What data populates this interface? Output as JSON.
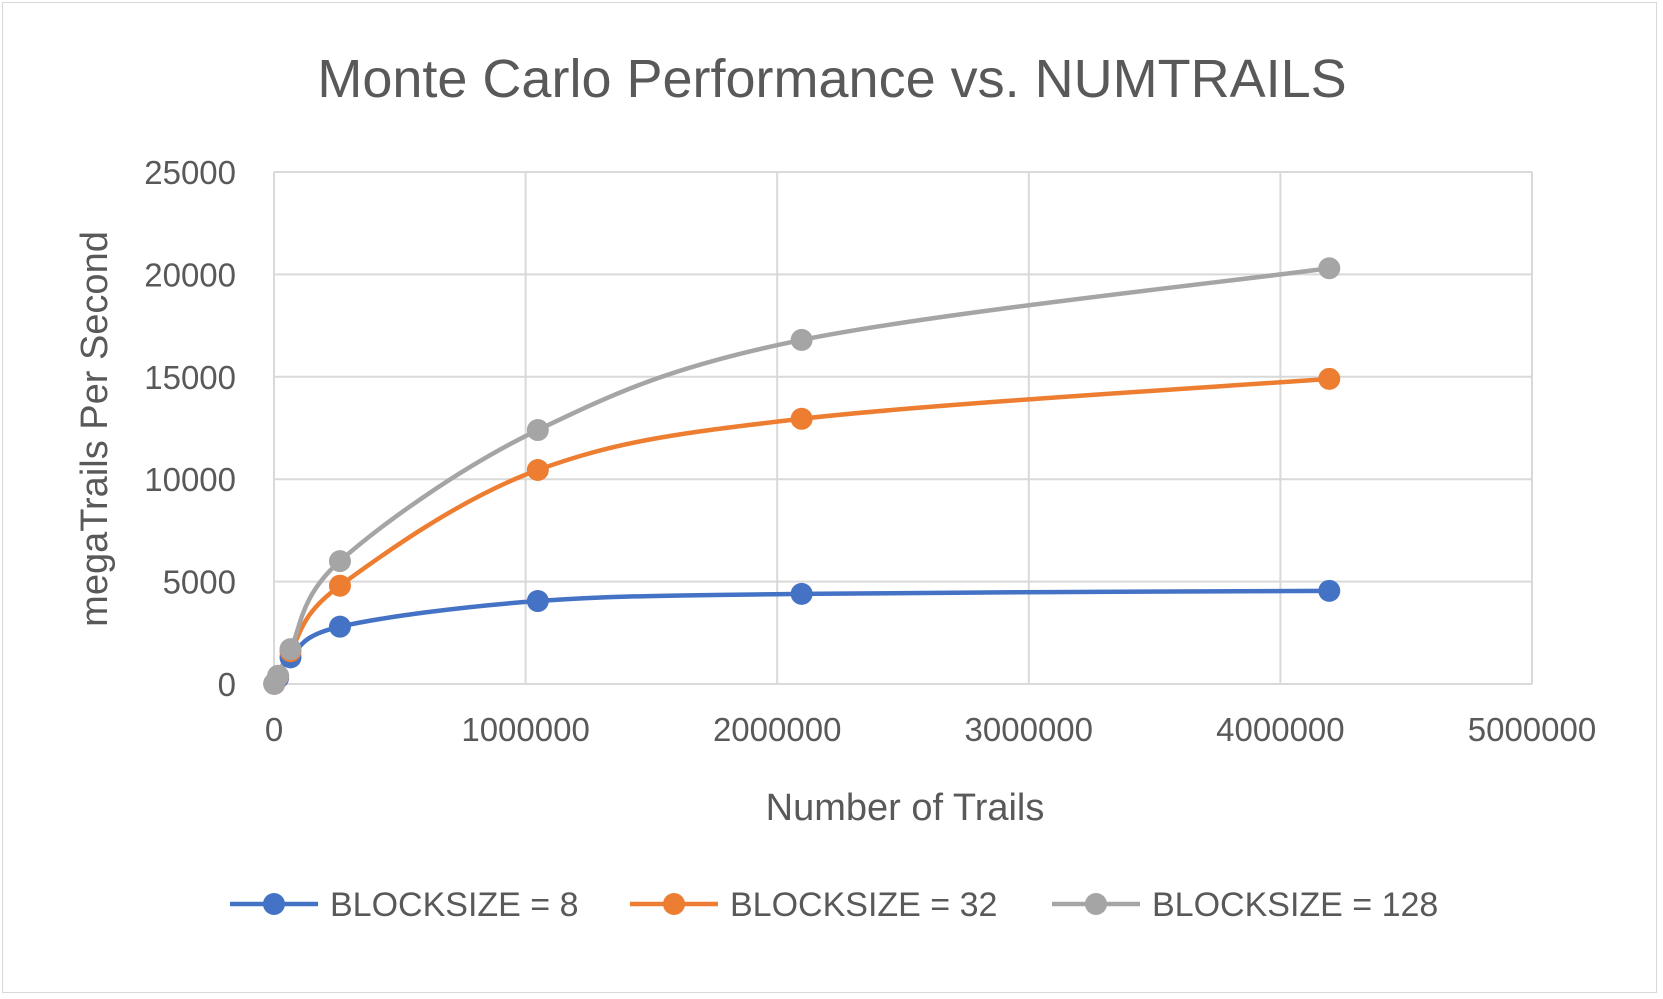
{
  "chart_data": {
    "type": "scatter",
    "title": "Monte Carlo Performance vs. NUMTRAILS",
    "xlabel": "Number of Trails",
    "ylabel": "megaTrails Per Second",
    "xlim": [
      0,
      5000000
    ],
    "ylim": [
      0,
      25000
    ],
    "x_ticks": [
      "0",
      "1000000",
      "2000000",
      "3000000",
      "4000000",
      "5000000"
    ],
    "y_ticks": [
      "0",
      "5000",
      "10000",
      "15000",
      "20000",
      "25000"
    ],
    "grid": true,
    "legend_position": "bottom",
    "line_style": "smooth",
    "x": [
      1024,
      16384,
      65536,
      262144,
      1048576,
      2097152,
      4194304
    ],
    "series": [
      {
        "name": "BLOCKSIZE = 8",
        "color": "#4472C4",
        "values": [
          15,
          300,
          1300,
          2800,
          4050,
          4400,
          4550
        ]
      },
      {
        "name": "BLOCKSIZE = 32",
        "color": "#ED7D31",
        "values": [
          10,
          380,
          1600,
          4800,
          10450,
          12950,
          14900
        ]
      },
      {
        "name": "BLOCKSIZE = 128",
        "color": "#A5A5A5",
        "values": [
          10,
          400,
          1700,
          6000,
          12400,
          16800,
          20300
        ]
      }
    ]
  }
}
